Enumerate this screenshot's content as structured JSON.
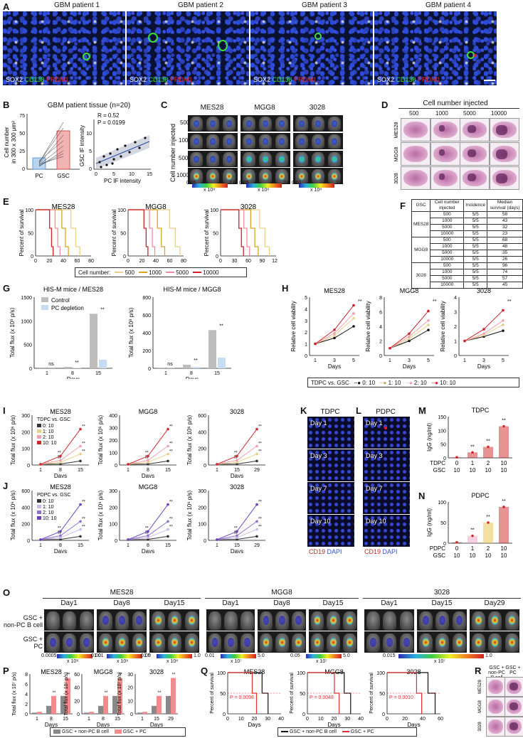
{
  "panels": {
    "A": "A",
    "B": "B",
    "C": "C",
    "D": "D",
    "E": "E",
    "F": "F",
    "G": "G",
    "H": "H",
    "I": "I",
    "J": "J",
    "K": "K",
    "L": "L",
    "M": "M",
    "N": "N",
    "O": "O",
    "P": "P",
    "Q": "Q",
    "R": "R"
  },
  "panelA": {
    "titles": [
      "GBM patient 1",
      "GBM patient 2",
      "GBM patient 3",
      "GBM patient 4"
    ],
    "stain": {
      "sox2": "SOX2",
      "cd138": "CD138",
      "prdm1": "PRDM1"
    }
  },
  "panelB": {
    "title": "GBM patient tissue (n=20)",
    "ylabel1": "Cell number",
    "ylabel2": "in 300 x 300 μm²",
    "yticks": [
      "0",
      "25",
      "50",
      "75"
    ],
    "xcat": [
      "PC",
      "GSC"
    ],
    "corr": {
      "r": "R = 0.52",
      "p": "P = 0.0199",
      "ylabel": "GSC IF intensity",
      "xlabel": "PC IF intensity",
      "xticks": [
        "0",
        "5",
        "10",
        "15"
      ],
      "yticks": [
        "0",
        "5",
        "10"
      ]
    }
  },
  "panelC": {
    "cols": [
      "MES28",
      "MGG8",
      "3028"
    ],
    "ylabel": "Cell number injected",
    "rows": [
      "500",
      "1000",
      "5000",
      "10000"
    ],
    "scales": [
      {
        "min": "0.05",
        "max": "2.0",
        "unit": "x 10⁸"
      },
      {
        "min": "0.05",
        "max": "2.0",
        "unit": "x 10⁸"
      },
      {
        "min": "0.01",
        "max": "2.0",
        "unit": "x 10⁸"
      }
    ]
  },
  "panelD": {
    "title": "Cell number injected",
    "cols": [
      "500",
      "1000",
      "5000",
      "10000"
    ],
    "rows": [
      "MES28",
      "MGG8",
      "3028"
    ]
  },
  "panelE": {
    "ylabel": "Percent of survival",
    "xlabel": "Days",
    "yticks": [
      "0",
      "50",
      "100"
    ],
    "legend_title": "Cell number:",
    "legend": [
      "500",
      "1000",
      "5000",
      "10000"
    ],
    "legend_colors": [
      "#e8d08a",
      "#d9a520",
      "#f08ca0",
      "#d0202a"
    ],
    "charts": [
      {
        "title": "MES28",
        "xticks": [
          "0",
          "20",
          "40",
          "60",
          "80"
        ]
      },
      {
        "title": "MGG8",
        "xticks": [
          "0",
          "20",
          "40",
          "60",
          "80"
        ]
      },
      {
        "title": "3028",
        "xticks": [
          "0",
          "30",
          "60",
          "90",
          "120"
        ]
      }
    ]
  },
  "panelF": {
    "headers": [
      "GSC",
      "Cell number injected",
      "Incidence",
      "Median survival (days)"
    ],
    "groups": [
      {
        "name": "MES28",
        "rows": [
          [
            "500",
            "5/5",
            "58"
          ],
          [
            "1000",
            "5/5",
            "43"
          ],
          [
            "5000",
            "5/5",
            "32"
          ],
          [
            "10000",
            "5/5",
            "23"
          ]
        ]
      },
      {
        "name": "MGG8",
        "rows": [
          [
            "500",
            "5/5",
            "68"
          ],
          [
            "1000",
            "5/5",
            "48"
          ],
          [
            "5000",
            "5/5",
            "35"
          ],
          [
            "10000",
            "5/5",
            "26"
          ]
        ]
      },
      {
        "name": "3028",
        "rows": [
          [
            "500",
            "5/5",
            "96"
          ],
          [
            "1000",
            "5/5",
            "74"
          ],
          [
            "5000",
            "5/5",
            "57"
          ],
          [
            "10000",
            "5/5",
            "45"
          ]
        ]
      }
    ]
  },
  "panelG": {
    "ylabel": "Total flux (x 10⁸ p/s)",
    "xlabel": "Days",
    "legend": [
      "Control",
      "PC depletion"
    ],
    "charts": [
      {
        "title": "HIS-M mice / MES28",
        "yticks": [
          "0",
          "500",
          "1000",
          "1500"
        ],
        "sig": [
          "ns",
          "**",
          "**"
        ]
      },
      {
        "title": "HIS-M mice / MGG8",
        "yticks": [
          "0",
          "200",
          "400",
          "600",
          "800"
        ],
        "sig": [
          "ns",
          "**",
          "**"
        ]
      }
    ],
    "xticks": [
      "1",
      "8",
      "15"
    ]
  },
  "panelH": {
    "ylabel": "Relative cell viability",
    "xlabel": "Days",
    "charts": [
      {
        "title": "MES28",
        "yticks": [
          "0",
          "1",
          "2",
          "3",
          "4",
          "5"
        ]
      },
      {
        "title": "MGG8",
        "yticks": [
          "0",
          "2",
          "4",
          "6",
          "8"
        ]
      },
      {
        "title": "3028",
        "yticks": [
          "0",
          "1",
          "2",
          "3",
          "4"
        ]
      }
    ],
    "xticks": [
      "1",
      "3",
      "5"
    ],
    "legend_title": "TDPC vs. GSC",
    "legend": [
      "0: 10",
      "1: 10",
      "2: 10",
      "10: 10"
    ],
    "legend_colors": [
      "#111111",
      "#e8d08a",
      "#f0a0b0",
      "#d0202a"
    ]
  },
  "panelI": {
    "ylabel": "Total flux (x 10⁶ p/s)",
    "xlabel": "Days",
    "legend_title": "TDPC vs. GSC",
    "legend": [
      "0: 10",
      "1: 10",
      "2: 10",
      "10: 10"
    ],
    "charts": [
      {
        "title": "MES28",
        "xticks": [
          "1",
          "8",
          "15"
        ],
        "yticks": [
          "0",
          "100",
          "200",
          "300"
        ]
      },
      {
        "title": "MGG8",
        "xticks": [
          "1",
          "8",
          "15"
        ],
        "yticks": [
          "0",
          "100",
          "200",
          "300",
          "400"
        ]
      },
      {
        "title": "3028",
        "xticks": [
          "1",
          "15",
          "29"
        ],
        "yticks": [
          "0",
          "200",
          "400",
          "600"
        ]
      }
    ]
  },
  "panelJ": {
    "ylabel": "Total flux (x 10⁶ p/s)",
    "xlabel": "Days",
    "legend_title": "PDPC vs. GSC",
    "legend": [
      "0: 10",
      "1: 10",
      "2: 10",
      "10: 10"
    ],
    "charts": [
      {
        "title": "MES28",
        "xticks": [
          "1",
          "8",
          "15"
        ],
        "yticks": [
          "0",
          "200",
          "400",
          "600"
        ]
      },
      {
        "title": "MGG8",
        "xticks": [
          "1",
          "8",
          "15"
        ],
        "yticks": [
          "0",
          "100",
          "200",
          "300"
        ]
      },
      {
        "title": "3028",
        "xticks": [
          "1",
          "15",
          "29"
        ],
        "yticks": [
          "0",
          "100",
          "200",
          "300"
        ]
      }
    ]
  },
  "panelK": {
    "title": "TDPC",
    "days": [
      "Day 1",
      "Day 3",
      "Day 7",
      "Day 10"
    ],
    "stain": {
      "cd19": "CD19",
      "dapi": "DAPI"
    }
  },
  "panelL": {
    "title": "PDPC",
    "days": [
      "Day 1",
      "Day 3",
      "Day 7",
      "Day 10"
    ],
    "stain": {
      "cd19": "CD19",
      "dapi": "DAPI"
    }
  },
  "panelM": {
    "title": "TDPC",
    "ylabel": "IgG (ng/ml)",
    "yticks": [
      "0",
      "50",
      "100",
      "150"
    ],
    "row1_label": "TDPC",
    "row1": [
      "0",
      "1",
      "2",
      "10"
    ],
    "row2_label": "GSC",
    "row2": [
      "10",
      "10",
      "10",
      "10"
    ]
  },
  "panelN": {
    "title": "PDPC",
    "ylabel": "IgG (ng/ml)",
    "yticks": [
      "0",
      "50",
      "100"
    ],
    "row1_label": "PDPC",
    "row1": [
      "0",
      "1",
      "2",
      "10"
    ],
    "row2_label": "GSC",
    "row2": [
      "10",
      "10",
      "10",
      "10"
    ]
  },
  "panelO": {
    "groups": [
      {
        "name": "MES28",
        "days": [
          "Day1",
          "Day8",
          "Day15"
        ],
        "scale": {
          "min": "0.0005",
          "max": "1.0",
          "unit": "x 10⁸"
        },
        "scale2": {
          "min": "0.001",
          "max": "1.0",
          "unit": "x 10⁸"
        },
        "scale3": {
          "min": "0.05",
          "max": "1.0",
          "unit": "x 10⁸"
        }
      },
      {
        "name": "MGG8",
        "days": [
          "Day1",
          "Day8",
          "Day15"
        ],
        "scale": {
          "min": "0.01",
          "max": "5.0",
          "unit": "x 10⁷"
        },
        "scale2": {
          "min": "0.05",
          "max": "5.0",
          "unit": "x 10⁷"
        }
      },
      {
        "name": "3028",
        "days": [
          "Day1",
          "Day15",
          "Day29"
        ],
        "scale": {
          "min": "0.015",
          "max": "1.0",
          "unit": "x 10⁷"
        }
      }
    ],
    "rows": [
      "GSC +",
      "non-PC B cell",
      "GSC +",
      "PC"
    ]
  },
  "panelP": {
    "ylabel": "Total flux (x 10⁷ p/s)",
    "xlabel": "Days",
    "charts": [
      {
        "title": "MES28",
        "xticks": [
          "1",
          "8",
          "15"
        ],
        "yticks": [
          "0",
          "2",
          "4",
          "6",
          "8"
        ]
      },
      {
        "title": "MGG8",
        "xticks": [
          "1",
          "8",
          "15"
        ],
        "yticks": [
          "0",
          "20",
          "40",
          "60"
        ]
      },
      {
        "title": "3028",
        "xticks": [
          "1",
          "15",
          "29"
        ],
        "yticks": [
          "0",
          "10",
          "20",
          "30"
        ]
      }
    ],
    "legend": [
      "GSC + non-PC B cell",
      "GSC + PC"
    ]
  },
  "panelQ": {
    "ylabel": "Percent of survival",
    "xlabel": "Days",
    "charts": [
      {
        "title": "MES28",
        "p": "P = 0.0098",
        "xticks": [
          "0",
          "10",
          "20",
          "30",
          "40"
        ]
      },
      {
        "title": "MGG8",
        "p": "P = 0.0048",
        "xticks": [
          "0",
          "10",
          "20",
          "30",
          "40"
        ]
      },
      {
        "title": "3028",
        "p": "P = 0.0010",
        "xticks": [
          "0",
          "20",
          "40",
          "60"
        ]
      }
    ],
    "yticks": [
      "0",
      "50",
      "100"
    ],
    "legend": [
      "GSC + non-PC B cell",
      "GSC + PC"
    ]
  },
  "panelR": {
    "cols": [
      "GSC + non-PC B cell",
      "GSC + PC"
    ],
    "rows": [
      "MES28",
      "MGG8",
      "3028"
    ]
  },
  "chart_data": [
    {
      "type": "line",
      "panel": "E",
      "title": "MES28",
      "xlabel": "Days",
      "ylabel": "Percent of survival",
      "ylim": [
        0,
        100
      ],
      "xlim": [
        0,
        80
      ],
      "series": [
        {
          "name": "500",
          "median": 58
        },
        {
          "name": "1000",
          "median": 43
        },
        {
          "name": "5000",
          "median": 32
        },
        {
          "name": "10000",
          "median": 23
        }
      ]
    },
    {
      "type": "line",
      "panel": "E",
      "title": "MGG8",
      "xlabel": "Days",
      "ylabel": "Percent of survival",
      "ylim": [
        0,
        100
      ],
      "xlim": [
        0,
        80
      ],
      "series": [
        {
          "name": "500",
          "median": 68
        },
        {
          "name": "1000",
          "median": 48
        },
        {
          "name": "5000",
          "median": 35
        },
        {
          "name": "10000",
          "median": 26
        }
      ]
    },
    {
      "type": "line",
      "panel": "E",
      "title": "3028",
      "xlabel": "Days",
      "ylabel": "Percent of survival",
      "ylim": [
        0,
        100
      ],
      "xlim": [
        0,
        120
      ],
      "series": [
        {
          "name": "500",
          "median": 96
        },
        {
          "name": "1000",
          "median": 74
        },
        {
          "name": "5000",
          "median": 57
        },
        {
          "name": "10000",
          "median": 45
        }
      ]
    },
    {
      "type": "bar",
      "panel": "G",
      "title": "HIS-M mice / MES28",
      "categories": [
        "1",
        "8",
        "15"
      ],
      "ylim": [
        0,
        1500
      ],
      "series": [
        {
          "name": "Control",
          "values": [
            2,
            30,
            1150
          ]
        },
        {
          "name": "PC depletion",
          "values": [
            2,
            10,
            180
          ]
        }
      ]
    },
    {
      "type": "bar",
      "panel": "G",
      "title": "HIS-M mice / MGG8",
      "categories": [
        "1",
        "8",
        "15"
      ],
      "ylim": [
        0,
        800
      ],
      "series": [
        {
          "name": "Control",
          "values": [
            2,
            40,
            430
          ]
        },
        {
          "name": "PC depletion",
          "values": [
            2,
            15,
            120
          ]
        }
      ]
    },
    {
      "type": "line",
      "panel": "H",
      "title": "MES28",
      "x": [
        1,
        3,
        5
      ],
      "ylim": [
        0,
        5
      ],
      "series": [
        {
          "name": "0: 10",
          "values": [
            1,
            1.5,
            2.5
          ]
        },
        {
          "name": "1: 10",
          "values": [
            1,
            1.7,
            3.2
          ]
        },
        {
          "name": "2: 10",
          "values": [
            1,
            1.9,
            3.6
          ]
        },
        {
          "name": "10: 10",
          "values": [
            1,
            2.2,
            4.3
          ]
        }
      ]
    },
    {
      "type": "line",
      "panel": "H",
      "title": "MGG8",
      "x": [
        1,
        3,
        5
      ],
      "ylim": [
        0,
        8
      ],
      "series": [
        {
          "name": "0: 10",
          "values": [
            1,
            2,
            3.5
          ]
        },
        {
          "name": "1: 10",
          "values": [
            1,
            2.3,
            4.2
          ]
        },
        {
          "name": "2: 10",
          "values": [
            1,
            2.6,
            4.8
          ]
        },
        {
          "name": "10: 10",
          "values": [
            1,
            3,
            6.1
          ]
        }
      ]
    },
    {
      "type": "line",
      "panel": "H",
      "title": "3028",
      "x": [
        1,
        3,
        5
      ],
      "ylim": [
        0,
        4
      ],
      "series": [
        {
          "name": "0: 10",
          "values": [
            1,
            1.3,
            1.7
          ]
        },
        {
          "name": "1: 10",
          "values": [
            1,
            1.4,
            2.1
          ]
        },
        {
          "name": "2: 10",
          "values": [
            1,
            1.5,
            2.4
          ]
        },
        {
          "name": "10: 10",
          "values": [
            1,
            1.8,
            3.1
          ]
        }
      ]
    },
    {
      "type": "bar",
      "panel": "M",
      "title": "TDPC",
      "categories": [
        "0",
        "1",
        "2",
        "10"
      ],
      "ylim": [
        0,
        150
      ],
      "values": [
        2,
        20,
        40,
        115
      ]
    },
    {
      "type": "bar",
      "panel": "N",
      "title": "PDPC",
      "categories": [
        "0",
        "1",
        "2",
        "10"
      ],
      "ylim": [
        0,
        100
      ],
      "values": [
        2,
        18,
        50,
        88
      ]
    },
    {
      "type": "line",
      "panel": "Q",
      "title": "MES28",
      "p": "P = 0.0098",
      "series": [
        {
          "name": "GSC + non-PC B cell",
          "median": 28
        },
        {
          "name": "GSC + PC",
          "median": 20
        }
      ]
    },
    {
      "type": "line",
      "panel": "Q",
      "title": "MGG8",
      "p": "P = 0.0048",
      "series": [
        {
          "name": "GSC + non-PC B cell",
          "median": 30
        },
        {
          "name": "GSC + PC",
          "median": 22
        }
      ]
    },
    {
      "type": "line",
      "panel": "Q",
      "title": "3028",
      "p": "P = 0.0010",
      "series": [
        {
          "name": "GSC + non-PC B cell",
          "median": 50
        },
        {
          "name": "GSC + PC",
          "median": 36
        }
      ]
    }
  ]
}
